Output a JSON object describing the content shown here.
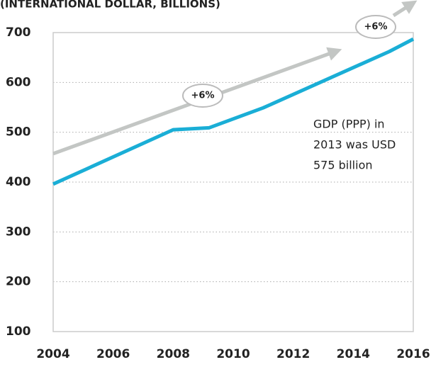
{
  "chart_data": {
    "type": "line",
    "title": "(INTERNATIONAL DOLLAR, BILLIONS)",
    "xlim": [
      2004,
      2016
    ],
    "xticks": [
      2004,
      2006,
      2008,
      2010,
      2012,
      2014,
      2016
    ],
    "ylim": [
      100,
      700
    ],
    "yticks": [
      100,
      200,
      300,
      400,
      500,
      600,
      700
    ],
    "grid": true,
    "series": [
      {
        "color": "#c3c6c4",
        "x": [
          2004,
          2013.4
        ],
        "values": [
          457,
          662
        ]
      },
      {
        "color": "#1aaed6",
        "x": [
          2004,
          2008,
          2009.2,
          2011,
          2015.2,
          2016
        ],
        "values": [
          396,
          505,
          509,
          549,
          662,
          687
        ]
      }
    ],
    "annotations": [
      "+6%",
      "+6%",
      [
        "GDP (PPP) in",
        "2013 was USD",
        "575 billion"
      ]
    ]
  }
}
